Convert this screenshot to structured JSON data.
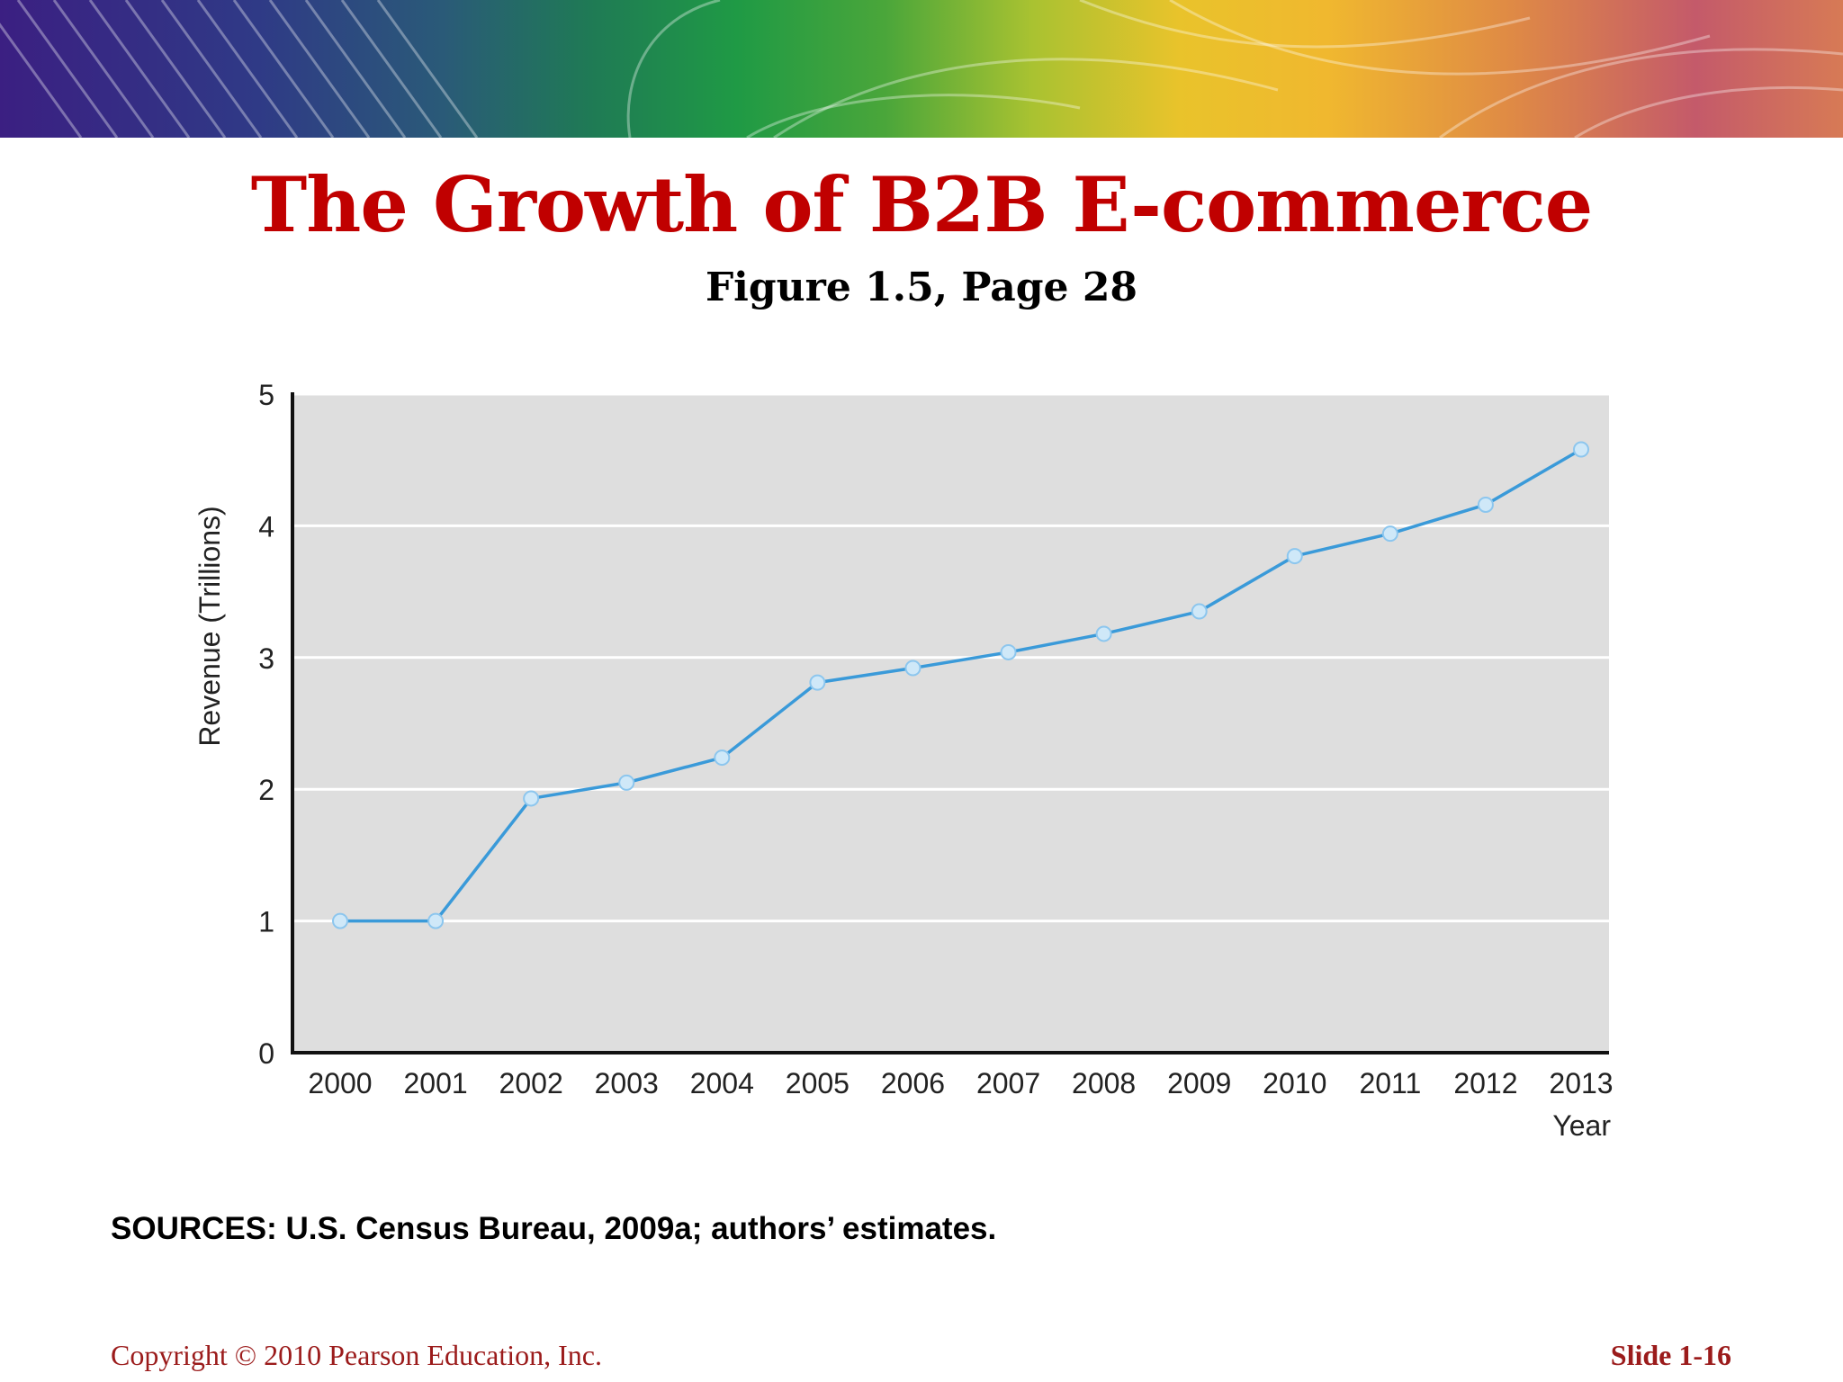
{
  "slide": {
    "title": "The Growth of B2B E-commerce",
    "subtitle": "Figure 1.5, Page 28",
    "sources": "SOURCES:  U.S. Census Bureau, 2009a; authors’ estimates.",
    "copyright": "Copyright © 2010 Pearson Education, Inc.",
    "slide_number": "Slide 1-16"
  },
  "colors": {
    "title": "#c00000",
    "footer": "#9b1b1b",
    "plot_background": "#dedede",
    "line": "#3a9ad9",
    "marker_fill": "#cfe8f8"
  },
  "chart_data": {
    "type": "line",
    "xlabel": "Year",
    "ylabel": "Revenue (Trillions)",
    "ylim": [
      0,
      5
    ],
    "yticks": [
      "0",
      "1",
      "2",
      "3",
      "4",
      "5"
    ],
    "grid": true,
    "categories": [
      "2000",
      "2001",
      "2002",
      "2003",
      "2004",
      "2005",
      "2006",
      "2007",
      "2008",
      "2009",
      "2010",
      "2011",
      "2012",
      "2013"
    ],
    "series": [
      {
        "values": [
          1.0,
          1.0,
          1.93,
          2.05,
          2.24,
          2.81,
          2.92,
          3.04,
          3.18,
          3.35,
          3.77,
          3.94,
          4.16,
          4.58
        ]
      }
    ]
  }
}
